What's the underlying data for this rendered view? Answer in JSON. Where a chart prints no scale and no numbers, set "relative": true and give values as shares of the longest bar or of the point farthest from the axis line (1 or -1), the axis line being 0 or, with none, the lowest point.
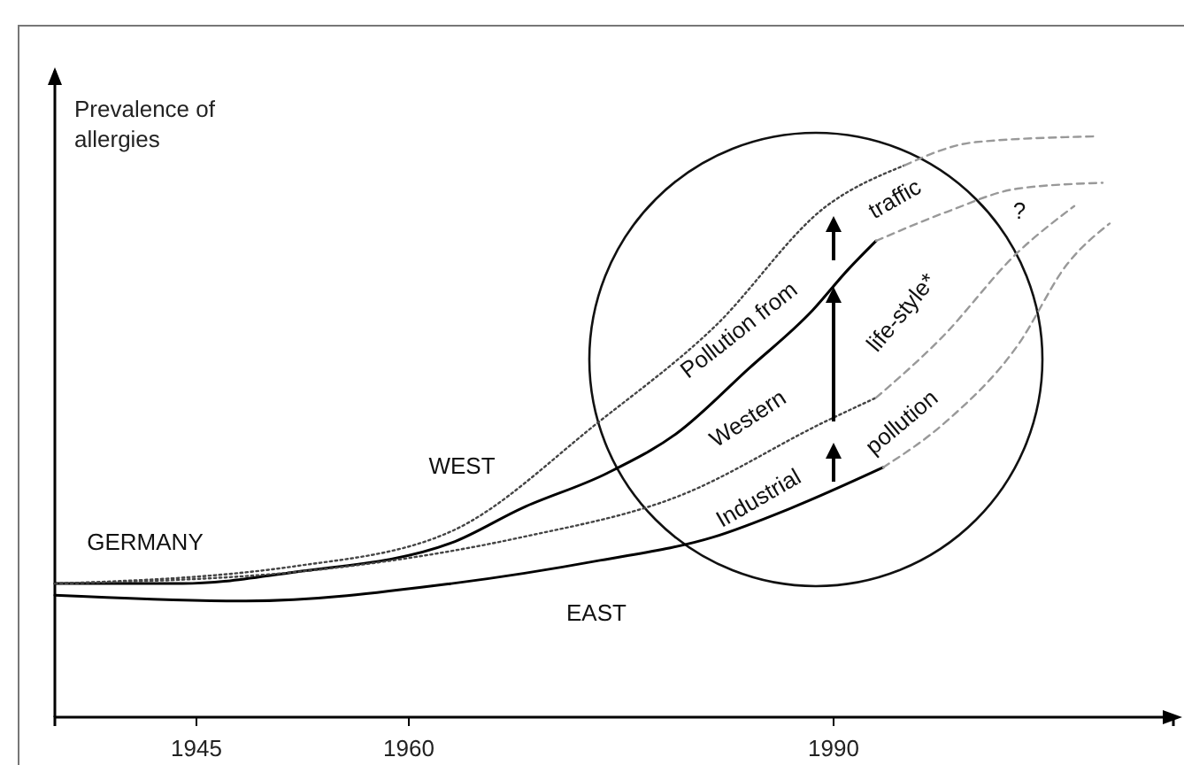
{
  "chart_data": {
    "type": "line",
    "relative": true,
    "ylabel": "Prevalence of allergies",
    "xlim": [
      1935,
      2014
    ],
    "xticks": [
      1945,
      1960,
      1990
    ],
    "marker": "none",
    "series": [
      {
        "color": "#000000",
        "line_style": "solid",
        "x": [
          1935,
          1944,
          1952,
          1963,
          1968,
          1974,
          1979,
          1984,
          1988.5,
          1991,
          1993
        ],
        "values": [
          0.23,
          0.23,
          0.25,
          0.3,
          0.36,
          0.42,
          0.49,
          0.6,
          0.7,
          0.77,
          0.82
        ]
      },
      {
        "color": "#999999",
        "line_style": "dashed",
        "x": [
          1993,
          1998,
          2003,
          2009
        ],
        "values": [
          0.82,
          0.87,
          0.91,
          0.92
        ]
      },
      {
        "color": "#000000",
        "line_style": "solid",
        "x": [
          1935,
          1948.5,
          1963,
          1973.5,
          1981.5,
          1987,
          1993.5
        ],
        "values": [
          0.21,
          0.2,
          0.23,
          0.27,
          0.31,
          0.36,
          0.43
        ]
      },
      {
        "color": "#999999",
        "line_style": "dashed",
        "x": [
          1993.5,
          1998,
          2003,
          2006.5,
          2009.5
        ],
        "values": [
          0.43,
          0.51,
          0.64,
          0.78,
          0.85
        ]
      },
      {
        "color": "#444444",
        "line_style": "dotted",
        "x": [
          1935,
          1952,
          1963,
          1973.5,
          1981.5,
          1989.5,
          1995
        ],
        "values": [
          0.23,
          0.26,
          0.32,
          0.51,
          0.67,
          0.88,
          0.95
        ]
      },
      {
        "color": "#999999",
        "line_style": "dashed",
        "x": [
          1995,
          2000,
          2008.5
        ],
        "values": [
          0.95,
          0.99,
          1.0
        ]
      },
      {
        "color": "#444444",
        "line_style": "dotted",
        "x": [
          1935,
          1952,
          1968,
          1979,
          1989.5,
          1993
        ],
        "values": [
          0.23,
          0.25,
          0.31,
          0.38,
          0.51,
          0.55
        ]
      },
      {
        "color": "#999999",
        "line_style": "dashed",
        "x": [
          1993,
          1997.5,
          2003,
          2007
        ],
        "values": [
          0.55,
          0.65,
          0.8,
          0.88
        ]
      }
    ],
    "annotations": [
      "WEST",
      "EAST",
      "GERMANY",
      "Pollution from",
      "traffic",
      "Western",
      "life-style*",
      "Industrial",
      "pollution",
      "?"
    ]
  }
}
